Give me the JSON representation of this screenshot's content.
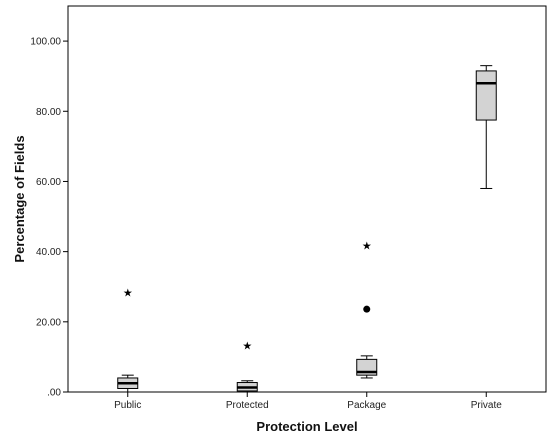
{
  "chart_data": {
    "type": "boxplot",
    "title": "",
    "xlabel": "Protection Level",
    "ylabel": "Percentage of Fields",
    "ylim": [
      0,
      110
    ],
    "yticks": [
      0,
      20,
      40,
      60,
      80,
      100
    ],
    "ytick_labels": [
      ".00",
      "20.00",
      "40.00",
      "60.00",
      "80.00",
      "100.00"
    ],
    "categories": [
      "Public",
      "Protected",
      "Package",
      "Private"
    ],
    "box_fill": "#d3d3d3",
    "line_color": "#000000",
    "grid": false,
    "boxes": [
      {
        "category": "Public",
        "whisker_low": 0.0,
        "q1": 1.0,
        "median": 2.5,
        "q3": 4.0,
        "whisker_high": 4.8,
        "outliers": [],
        "extremes": [
          28.3
        ]
      },
      {
        "category": "Protected",
        "whisker_low": 0.0,
        "q1": 0.3,
        "median": 1.3,
        "q3": 2.7,
        "whisker_high": 3.2,
        "outliers": [],
        "extremes": [
          13.3
        ]
      },
      {
        "category": "Package",
        "whisker_low": 4.0,
        "q1": 4.8,
        "median": 5.7,
        "q3": 9.3,
        "whisker_high": 10.3,
        "outliers": [
          23.6
        ],
        "extremes": [
          41.8
        ]
      },
      {
        "category": "Private",
        "whisker_low": 58.0,
        "q1": 77.5,
        "median": 88.0,
        "q3": 91.5,
        "whisker_high": 93.0,
        "outliers": [],
        "extremes": []
      }
    ]
  }
}
